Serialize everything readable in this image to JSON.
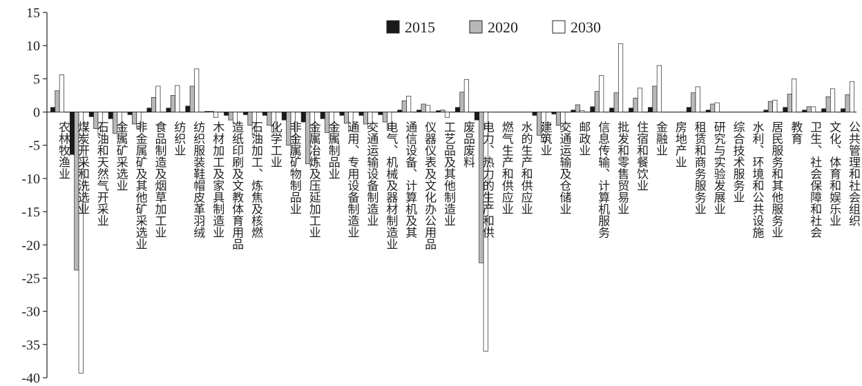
{
  "chart_data": {
    "type": "bar",
    "title": "",
    "xlabel": "",
    "ylabel": "",
    "ylim": [
      -40,
      15
    ],
    "yticks": [
      15,
      10,
      5,
      0,
      -5,
      -10,
      -15,
      -20,
      -25,
      -30,
      -35,
      -40
    ],
    "legend_position": "top-center",
    "colors": {
      "2015": "#1a1a1a",
      "2020": "#b8b8b8",
      "2030": "#ffffff"
    },
    "categories": [
      "农林牧渔业",
      "煤炭开采和洗选业",
      "石油和天然气开采业",
      "金属矿采选业",
      "非金属矿及其他矿采选业",
      "食品制造及烟草加工业",
      "纺织业",
      "纺织服装鞋帽皮革羽绒",
      "木材加工及家具制造业",
      "造纸印刷及文教体育用品",
      "石油加工、炼焦及核燃",
      "化学工业",
      "非金属矿物制品业",
      "金属冶炼及压延加工业",
      "金属制品业",
      "通用、专用设备制造业",
      "交通运输设备制造业",
      "电气、机械及器材制造业",
      "通信设备、计算机及其",
      "仪器仪表及文化办公用品",
      "工艺品及其他制造业",
      "废品废料",
      "电力、热力的生产和供",
      "燃气生产和供应业",
      "水的生产和供应业",
      "建筑业",
      "交通运输及仓储业",
      "邮政业",
      "信息传输、计算机服务",
      "批发和零售贸易业",
      "住宿和餐饮业",
      "金融业",
      "房地产业",
      "租赁和商务服务业",
      "研究与实验发展业",
      "综合技术服务业",
      "水利、环境和公共设施",
      "居民服务和其他服务业",
      "教育",
      "卫生、社会保障和社会",
      "文化、体育和娱乐业",
      "公共管理和社会组织"
    ],
    "series": [
      {
        "name": "2015",
        "values": [
          0.7,
          -6.4,
          -0.7,
          -1.0,
          -0.4,
          0.6,
          0.6,
          0.9,
          0.1,
          -0.5,
          -0.4,
          -0.5,
          -1.2,
          -1.5,
          -1.0,
          -0.5,
          -0.5,
          -0.4,
          0.3,
          0.3,
          0.2,
          0.7,
          -1.2,
          0.0,
          0.0,
          -0.5,
          -0.3,
          0.3,
          0.8,
          0.6,
          0.6,
          0.7,
          0.0,
          0.7,
          0.3,
          0.0,
          0.0,
          0.3,
          0.7,
          0.3,
          0.5,
          0.5
        ]
      },
      {
        "name": "2020",
        "values": [
          3.2,
          -23.8,
          -2.5,
          -3.2,
          -1.8,
          2.2,
          2.5,
          3.9,
          0.1,
          -1.2,
          -2.0,
          -2.0,
          -5.0,
          -7.8,
          -3.1,
          -1.7,
          -1.8,
          -1.5,
          1.7,
          1.2,
          0.3,
          3.0,
          -22.7,
          0.0,
          0.0,
          -3.5,
          -2.0,
          1.1,
          3.1,
          2.9,
          2.1,
          3.9,
          0.0,
          2.9,
          1.2,
          0.0,
          0.0,
          1.6,
          2.7,
          0.8,
          2.3,
          2.6
        ]
      },
      {
        "name": "2030",
        "values": [
          5.6,
          -39.3,
          -3.5,
          -4.0,
          -2.4,
          3.9,
          4.0,
          6.5,
          -0.8,
          -1.8,
          -3.5,
          -3.0,
          -6.8,
          -8.0,
          -4.1,
          -2.8,
          -2.5,
          -2.8,
          2.4,
          1.0,
          -0.8,
          4.9,
          -36.0,
          0.0,
          0.0,
          -4.5,
          -2.6,
          0.2,
          5.5,
          10.3,
          3.6,
          7.0,
          0.0,
          3.8,
          1.4,
          0.0,
          0.0,
          1.8,
          5.0,
          0.8,
          3.5,
          4.6
        ]
      }
    ]
  }
}
